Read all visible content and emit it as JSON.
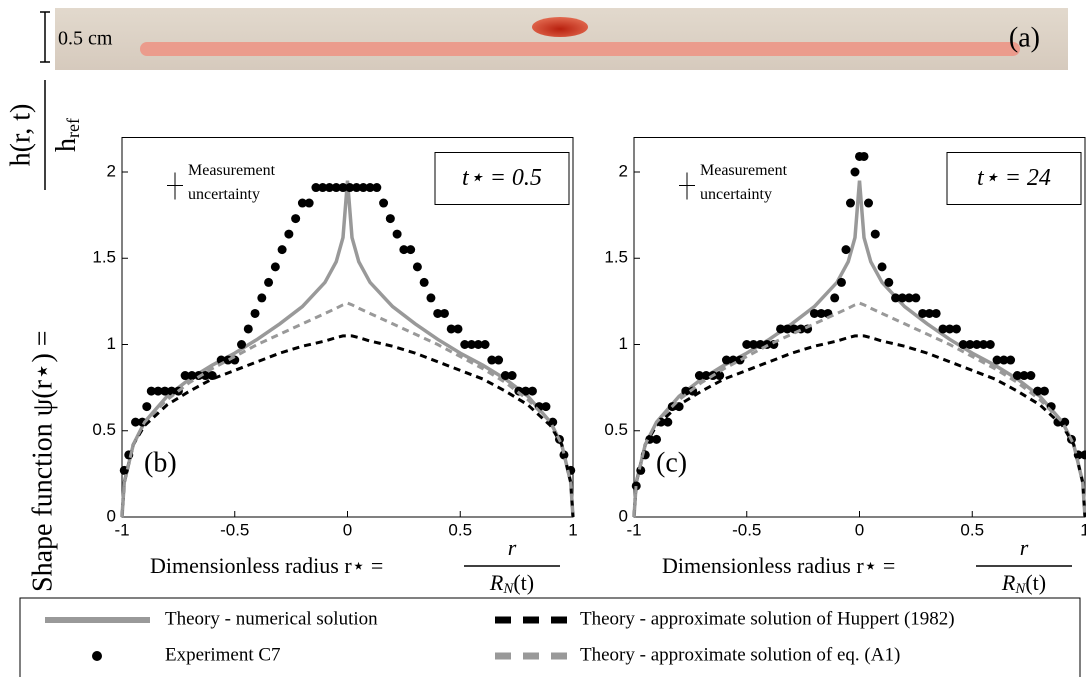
{
  "photo": {
    "scale_label": "0.5 cm",
    "panel_label": "(a)"
  },
  "y_label": {
    "main": "Shape function ψ(r⋆) =",
    "num": "h(r, t)",
    "den": "h",
    "den_sub": "ref"
  },
  "chart_data": [
    {
      "type": "line",
      "panel_label": "(b)",
      "annotation": "t⋆ = 0.5",
      "uncertainty_label": [
        "Measurement",
        "uncertainty"
      ],
      "x_label": {
        "main": "Dimensionless radius r⋆ =",
        "num": "r",
        "den": "R",
        "den_sub": "N",
        "den_tail": "(t)"
      },
      "xlim": [
        -1,
        1
      ],
      "ylim": [
        0,
        2.2
      ],
      "xticks": [
        -1,
        -0.5,
        0,
        0.5,
        1
      ],
      "yticks": [
        0,
        0.5,
        1,
        1.5,
        2
      ],
      "x": [
        -1,
        -0.99,
        -0.95,
        -0.9,
        -0.8,
        -0.7,
        -0.6,
        -0.5,
        -0.4,
        -0.3,
        -0.2,
        -0.1,
        -0.05,
        -0.02,
        0,
        0.02,
        0.05,
        0.1,
        0.2,
        0.3,
        0.4,
        0.5,
        0.6,
        0.7,
        0.8,
        0.9,
        0.95,
        0.99,
        1
      ],
      "series": [
        {
          "name": "Theory - numerical solution",
          "style": "solid",
          "color": "#999999",
          "values": [
            0,
            0.2,
            0.42,
            0.55,
            0.7,
            0.8,
            0.88,
            0.95,
            1.03,
            1.12,
            1.22,
            1.36,
            1.48,
            1.62,
            1.95,
            1.62,
            1.48,
            1.36,
            1.22,
            1.12,
            1.03,
            0.95,
            0.88,
            0.8,
            0.7,
            0.55,
            0.42,
            0.2,
            0
          ]
        },
        {
          "name": "Experiment C7",
          "style": "dots",
          "color": "#000000",
          "x": [
            -0.99,
            -0.97,
            -0.94,
            -0.91,
            -0.89,
            -0.87,
            -0.84,
            -0.81,
            -0.78,
            -0.75,
            -0.72,
            -0.69,
            -0.66,
            -0.63,
            -0.6,
            -0.56,
            -0.53,
            -0.5,
            -0.47,
            -0.44,
            -0.41,
            -0.38,
            -0.35,
            -0.32,
            -0.29,
            -0.26,
            -0.23,
            -0.2,
            -0.17,
            -0.14,
            -0.11,
            -0.08,
            -0.05,
            -0.02,
            0.01,
            0.04,
            0.07,
            0.1,
            0.13,
            0.16,
            0.19,
            0.22,
            0.25,
            0.28,
            0.31,
            0.34,
            0.37,
            0.4,
            0.43,
            0.46,
            0.49,
            0.52,
            0.55,
            0.58,
            0.61,
            0.64,
            0.67,
            0.7,
            0.73,
            0.76,
            0.79,
            0.82,
            0.85,
            0.88,
            0.91,
            0.94,
            0.96,
            0.99
          ],
          "values": [
            0.27,
            0.36,
            0.55,
            0.55,
            0.64,
            0.73,
            0.73,
            0.73,
            0.73,
            0.73,
            0.82,
            0.82,
            0.82,
            0.82,
            0.82,
            0.91,
            0.91,
            0.91,
            1.0,
            1.09,
            1.18,
            1.27,
            1.36,
            1.45,
            1.55,
            1.64,
            1.73,
            1.82,
            1.82,
            1.91,
            1.91,
            1.91,
            1.91,
            1.91,
            1.91,
            1.91,
            1.91,
            1.91,
            1.91,
            1.82,
            1.73,
            1.64,
            1.55,
            1.55,
            1.45,
            1.36,
            1.27,
            1.18,
            1.18,
            1.09,
            1.09,
            1.0,
            1.0,
            1.0,
            1.0,
            0.91,
            0.91,
            0.82,
            0.82,
            0.73,
            0.73,
            0.73,
            0.64,
            0.64,
            0.55,
            0.45,
            0.36,
            0.27
          ]
        },
        {
          "name": "Theory - approximate solution of Huppert (1982)",
          "style": "dashed",
          "color": "#000000",
          "values": [
            0,
            0.2,
            0.42,
            0.53,
            0.65,
            0.73,
            0.8,
            0.85,
            0.9,
            0.95,
            0.99,
            1.02,
            1.04,
            1.05,
            1.05,
            1.05,
            1.04,
            1.02,
            0.99,
            0.95,
            0.9,
            0.85,
            0.8,
            0.73,
            0.65,
            0.53,
            0.42,
            0.2,
            0
          ]
        },
        {
          "name": "Theory - approximate solution of eq. (A1)",
          "style": "dashed",
          "color": "#999999",
          "values": [
            0,
            0.2,
            0.42,
            0.55,
            0.68,
            0.78,
            0.86,
            0.93,
            1.0,
            1.06,
            1.12,
            1.18,
            1.21,
            1.23,
            1.24,
            1.23,
            1.21,
            1.18,
            1.12,
            1.06,
            1.0,
            0.93,
            0.86,
            0.78,
            0.68,
            0.55,
            0.42,
            0.2,
            0
          ]
        }
      ]
    },
    {
      "type": "line",
      "panel_label": "(c)",
      "annotation": "t⋆ = 24",
      "uncertainty_label": [
        "Measurement",
        "uncertainty"
      ],
      "x_label": {
        "main": "Dimensionless radius r⋆ =",
        "num": "r",
        "den": "R",
        "den_sub": "N",
        "den_tail": "(t)"
      },
      "xlim": [
        -1,
        1
      ],
      "ylim": [
        0,
        2.2
      ],
      "xticks": [
        -1,
        -0.5,
        0,
        0.5,
        1
      ],
      "yticks": [
        0,
        0.5,
        1,
        1.5,
        2
      ],
      "x": [
        -1,
        -0.99,
        -0.95,
        -0.9,
        -0.8,
        -0.7,
        -0.6,
        -0.5,
        -0.4,
        -0.3,
        -0.2,
        -0.1,
        -0.05,
        -0.02,
        0,
        0.02,
        0.05,
        0.1,
        0.2,
        0.3,
        0.4,
        0.5,
        0.6,
        0.7,
        0.8,
        0.9,
        0.95,
        0.99,
        1
      ],
      "series": [
        {
          "style": "solid",
          "color": "#999999",
          "values": [
            0,
            0.2,
            0.42,
            0.55,
            0.7,
            0.8,
            0.88,
            0.95,
            1.03,
            1.12,
            1.22,
            1.36,
            1.48,
            1.62,
            1.95,
            1.62,
            1.48,
            1.36,
            1.22,
            1.12,
            1.03,
            0.95,
            0.88,
            0.8,
            0.7,
            0.55,
            0.42,
            0.2,
            0
          ]
        },
        {
          "style": "dots",
          "color": "#000000",
          "x": [
            -0.99,
            -0.97,
            -0.95,
            -0.93,
            -0.9,
            -0.88,
            -0.85,
            -0.83,
            -0.8,
            -0.77,
            -0.74,
            -0.71,
            -0.68,
            -0.65,
            -0.62,
            -0.59,
            -0.56,
            -0.53,
            -0.5,
            -0.47,
            -0.44,
            -0.41,
            -0.38,
            -0.35,
            -0.32,
            -0.29,
            -0.26,
            -0.23,
            -0.2,
            -0.17,
            -0.14,
            -0.11,
            -0.08,
            -0.06,
            -0.04,
            -0.02,
            0,
            0.02,
            0.04,
            0.07,
            0.1,
            0.13,
            0.16,
            0.19,
            0.22,
            0.25,
            0.28,
            0.31,
            0.34,
            0.37,
            0.4,
            0.43,
            0.46,
            0.49,
            0.52,
            0.55,
            0.58,
            0.61,
            0.64,
            0.67,
            0.7,
            0.73,
            0.76,
            0.79,
            0.82,
            0.85,
            0.88,
            0.91,
            0.94,
            0.97,
            1.0
          ],
          "values": [
            0.18,
            0.27,
            0.36,
            0.45,
            0.45,
            0.55,
            0.55,
            0.64,
            0.64,
            0.73,
            0.73,
            0.82,
            0.82,
            0.82,
            0.82,
            0.91,
            0.91,
            0.91,
            1.0,
            1.0,
            1.0,
            1.0,
            1.0,
            1.09,
            1.09,
            1.09,
            1.09,
            1.09,
            1.18,
            1.18,
            1.18,
            1.27,
            1.36,
            1.55,
            1.82,
            2.0,
            2.09,
            2.09,
            1.82,
            1.64,
            1.45,
            1.36,
            1.27,
            1.27,
            1.27,
            1.27,
            1.18,
            1.18,
            1.18,
            1.09,
            1.09,
            1.09,
            1.0,
            1.0,
            1.0,
            1.0,
            1.0,
            0.91,
            0.91,
            0.91,
            0.82,
            0.82,
            0.82,
            0.73,
            0.73,
            0.64,
            0.55,
            0.55,
            0.45,
            0.36,
            0.36
          ]
        },
        {
          "style": "dashed",
          "color": "#000000",
          "values": [
            0,
            0.2,
            0.42,
            0.53,
            0.65,
            0.73,
            0.8,
            0.85,
            0.9,
            0.95,
            0.99,
            1.02,
            1.04,
            1.05,
            1.05,
            1.05,
            1.04,
            1.02,
            0.99,
            0.95,
            0.9,
            0.85,
            0.8,
            0.73,
            0.65,
            0.53,
            0.42,
            0.2,
            0
          ]
        },
        {
          "style": "dashed",
          "color": "#999999",
          "values": [
            0,
            0.2,
            0.42,
            0.55,
            0.68,
            0.78,
            0.86,
            0.93,
            1.0,
            1.06,
            1.12,
            1.18,
            1.21,
            1.23,
            1.24,
            1.23,
            1.21,
            1.18,
            1.12,
            1.06,
            1.0,
            0.93,
            0.86,
            0.78,
            0.68,
            0.55,
            0.42,
            0.2,
            0
          ]
        }
      ]
    }
  ]
}
